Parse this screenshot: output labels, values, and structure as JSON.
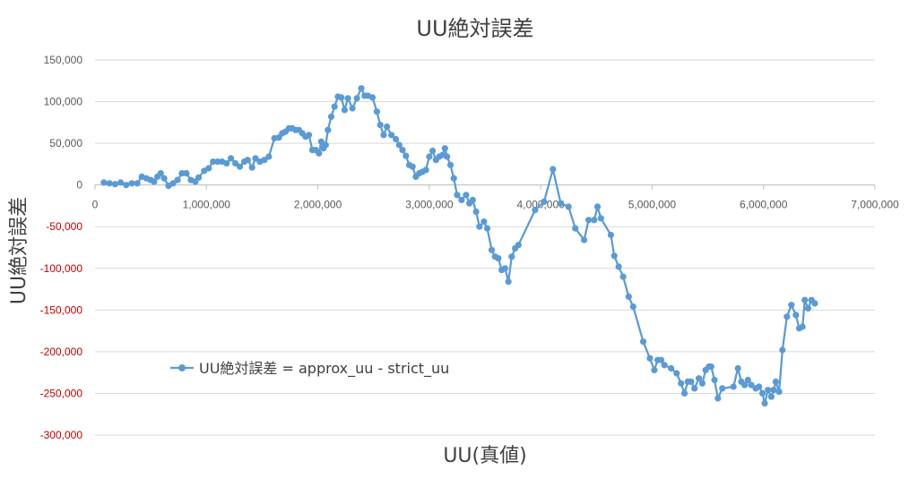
{
  "chart_data": {
    "type": "line",
    "title": "UU絶対誤差",
    "xlabel": "UU(真値)",
    "ylabel": "UU絶対誤差",
    "xlim": [
      0,
      7000000
    ],
    "ylim": [
      -300000,
      150000
    ],
    "x_ticks": [
      0,
      1000000,
      2000000,
      3000000,
      4000000,
      5000000,
      6000000,
      7000000
    ],
    "x_tick_labels": [
      "0",
      "1,000,000",
      "2,000,000",
      "3,000,000",
      "4,000,000",
      "5,000,000",
      "6,000,000",
      "7,000,000"
    ],
    "y_ticks": [
      150000,
      100000,
      50000,
      0,
      -50000,
      -100000,
      -150000,
      -200000,
      -250000,
      -300000
    ],
    "y_tick_labels": [
      "150,000",
      "100,000",
      "50,000",
      "0",
      "-50,000",
      "-100,000",
      "-150,000",
      "-200,000",
      "-250,000",
      "-300,000"
    ],
    "grid": "horizontal",
    "legend_position": "middle-left",
    "colors": {
      "series": "#5b9bd5",
      "negative_tick": "#c00000",
      "grid": "#d9d9d9"
    },
    "series": [
      {
        "name": "UU絶対誤差 = approx_uu - strict_uu",
        "points": [
          [
            80000,
            3000
          ],
          [
            130000,
            2000
          ],
          [
            180000,
            1000
          ],
          [
            230000,
            3000
          ],
          [
            280000,
            0
          ],
          [
            330000,
            2000
          ],
          [
            380000,
            2000
          ],
          [
            420000,
            10000
          ],
          [
            460000,
            8000
          ],
          [
            500000,
            6000
          ],
          [
            530000,
            4000
          ],
          [
            560000,
            10000
          ],
          [
            590000,
            14000
          ],
          [
            620000,
            8000
          ],
          [
            660000,
            -1000
          ],
          [
            700000,
            2000
          ],
          [
            740000,
            6000
          ],
          [
            780000,
            14000
          ],
          [
            820000,
            14000
          ],
          [
            860000,
            6000
          ],
          [
            900000,
            4000
          ],
          [
            930000,
            9000
          ],
          [
            980000,
            17000
          ],
          [
            1020000,
            20000
          ],
          [
            1060000,
            28000
          ],
          [
            1100000,
            28000
          ],
          [
            1140000,
            28000
          ],
          [
            1180000,
            26000
          ],
          [
            1220000,
            32000
          ],
          [
            1260000,
            26000
          ],
          [
            1300000,
            22000
          ],
          [
            1340000,
            28000
          ],
          [
            1370000,
            30000
          ],
          [
            1410000,
            21000
          ],
          [
            1440000,
            32000
          ],
          [
            1480000,
            28000
          ],
          [
            1520000,
            30000
          ],
          [
            1560000,
            34000
          ],
          [
            1610000,
            56000
          ],
          [
            1650000,
            57000
          ],
          [
            1680000,
            62000
          ],
          [
            1710000,
            64000
          ],
          [
            1740000,
            68000
          ],
          [
            1770000,
            68000
          ],
          [
            1800000,
            66000
          ],
          [
            1830000,
            66000
          ],
          [
            1860000,
            62000
          ],
          [
            1890000,
            58000
          ],
          [
            1920000,
            60000
          ],
          [
            1950000,
            42000
          ],
          [
            1980000,
            42000
          ],
          [
            2010000,
            38000
          ],
          [
            2030000,
            52000
          ],
          [
            2050000,
            44000
          ],
          [
            2070000,
            48000
          ],
          [
            2090000,
            66000
          ],
          [
            2120000,
            82000
          ],
          [
            2150000,
            94000
          ],
          [
            2180000,
            106000
          ],
          [
            2210000,
            105000
          ],
          [
            2240000,
            90000
          ],
          [
            2270000,
            104000
          ],
          [
            2310000,
            92000
          ],
          [
            2350000,
            104000
          ],
          [
            2390000,
            116000
          ],
          [
            2420000,
            107000
          ],
          [
            2450000,
            107000
          ],
          [
            2490000,
            105000
          ],
          [
            2530000,
            88000
          ],
          [
            2560000,
            72000
          ],
          [
            2590000,
            60000
          ],
          [
            2620000,
            70000
          ],
          [
            2660000,
            60000
          ],
          [
            2700000,
            55000
          ],
          [
            2730000,
            48000
          ],
          [
            2760000,
            42000
          ],
          [
            2790000,
            35000
          ],
          [
            2820000,
            24000
          ],
          [
            2850000,
            22000
          ],
          [
            2880000,
            10000
          ],
          [
            2910000,
            14000
          ],
          [
            2940000,
            16000
          ],
          [
            2970000,
            18000
          ],
          [
            3000000,
            34000
          ],
          [
            3030000,
            41000
          ],
          [
            3060000,
            30000
          ],
          [
            3090000,
            34000
          ],
          [
            3120000,
            36000
          ],
          [
            3140000,
            44000
          ],
          [
            3160000,
            34000
          ],
          [
            3190000,
            24000
          ],
          [
            3220000,
            8000
          ],
          [
            3250000,
            -12000
          ],
          [
            3290000,
            -18000
          ],
          [
            3330000,
            -12000
          ],
          [
            3360000,
            -22000
          ],
          [
            3390000,
            -18000
          ],
          [
            3420000,
            -32000
          ],
          [
            3450000,
            -50000
          ],
          [
            3490000,
            -44000
          ],
          [
            3520000,
            -52000
          ],
          [
            3560000,
            -78000
          ],
          [
            3590000,
            -86000
          ],
          [
            3620000,
            -88000
          ],
          [
            3650000,
            -102000
          ],
          [
            3680000,
            -100000
          ],
          [
            3710000,
            -116000
          ],
          [
            3740000,
            -86000
          ],
          [
            3770000,
            -76000
          ],
          [
            3800000,
            -72000
          ],
          [
            3950000,
            -30000
          ],
          [
            4030000,
            -20000
          ],
          [
            4110000,
            19000
          ],
          [
            4180000,
            -22000
          ],
          [
            4250000,
            -26000
          ],
          [
            4310000,
            -52000
          ],
          [
            4390000,
            -66000
          ],
          [
            4430000,
            -42000
          ],
          [
            4480000,
            -42000
          ],
          [
            4510000,
            -26000
          ],
          [
            4540000,
            -40000
          ],
          [
            4630000,
            -60000
          ],
          [
            4660000,
            -85000
          ],
          [
            4700000,
            -98000
          ],
          [
            4740000,
            -110000
          ],
          [
            4790000,
            -134000
          ],
          [
            4830000,
            -146000
          ],
          [
            4920000,
            -188000
          ],
          [
            4980000,
            -208000
          ],
          [
            5020000,
            -222000
          ],
          [
            5050000,
            -210000
          ],
          [
            5080000,
            -210000
          ],
          [
            5110000,
            -216000
          ],
          [
            5170000,
            -220000
          ],
          [
            5220000,
            -226000
          ],
          [
            5260000,
            -238000
          ],
          [
            5290000,
            -250000
          ],
          [
            5320000,
            -236000
          ],
          [
            5350000,
            -236000
          ],
          [
            5380000,
            -244000
          ],
          [
            5420000,
            -232000
          ],
          [
            5450000,
            -238000
          ],
          [
            5480000,
            -222000
          ],
          [
            5510000,
            -218000
          ],
          [
            5530000,
            -218000
          ],
          [
            5560000,
            -234000
          ],
          [
            5590000,
            -256000
          ],
          [
            5630000,
            -244000
          ],
          [
            5730000,
            -242000
          ],
          [
            5770000,
            -220000
          ],
          [
            5800000,
            -236000
          ],
          [
            5830000,
            -240000
          ],
          [
            5860000,
            -234000
          ],
          [
            5890000,
            -240000
          ],
          [
            5930000,
            -244000
          ],
          [
            5960000,
            -242000
          ],
          [
            5990000,
            -250000
          ],
          [
            6010000,
            -262000
          ],
          [
            6040000,
            -246000
          ],
          [
            6070000,
            -254000
          ],
          [
            6090000,
            -246000
          ],
          [
            6110000,
            -236000
          ],
          [
            6140000,
            -248000
          ],
          [
            6170000,
            -198000
          ],
          [
            6210000,
            -158000
          ],
          [
            6250000,
            -144000
          ],
          [
            6290000,
            -156000
          ],
          [
            6320000,
            -172000
          ],
          [
            6350000,
            -170000
          ],
          [
            6370000,
            -138000
          ],
          [
            6400000,
            -148000
          ],
          [
            6430000,
            -138000
          ],
          [
            6460000,
            -142000
          ]
        ]
      }
    ]
  }
}
